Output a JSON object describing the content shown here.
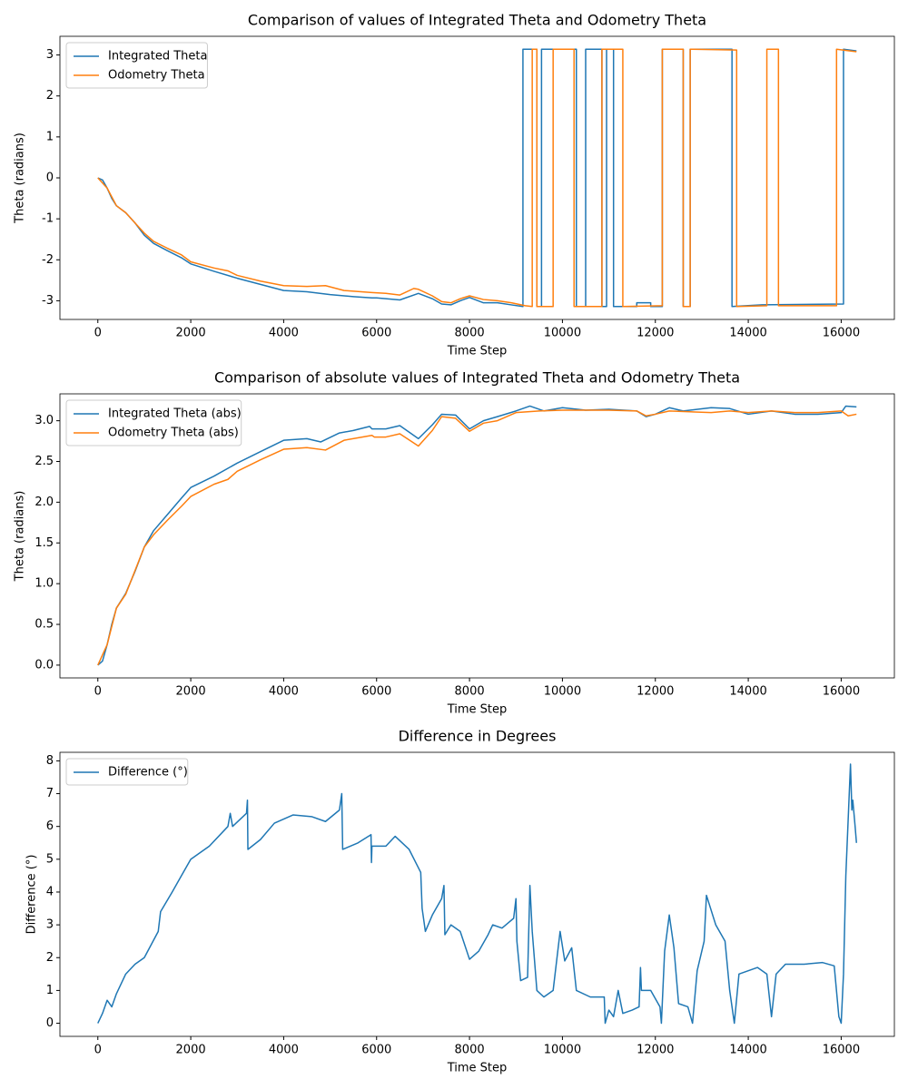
{
  "chart_data": [
    {
      "type": "line",
      "title": "Comparison of values of Integrated Theta and Odometry Theta",
      "x_label": "Time Step",
      "y_label": "Theta (radians)",
      "legend": "upper left",
      "grid": false,
      "xlim": [
        -816,
        17145
      ],
      "xticks": [
        0,
        2000,
        4000,
        6000,
        8000,
        10000,
        12000,
        14000,
        16000
      ],
      "ylim": [
        -3.456,
        3.456
      ],
      "yticks": [
        -3,
        -2,
        -1,
        0,
        1,
        2,
        3
      ],
      "series": [
        {
          "name": "Integrated Theta",
          "color": "#1f77b4",
          "x": [
            0,
            100,
            200,
            300,
            400,
            600,
            800,
            1000,
            1200,
            1500,
            1800,
            2000,
            2500,
            3000,
            3500,
            4000,
            4500,
            5000,
            5500,
            5900,
            6000,
            6500,
            6900,
            7200,
            7400,
            7600,
            7800,
            8000,
            8300,
            8600,
            8900,
            9150,
            9150,
            9450,
            9450,
            9550,
            9550,
            10300,
            10300,
            10500,
            10500,
            10850,
            10850,
            10950,
            10950,
            11100,
            11100,
            11600,
            11600,
            11900,
            11900,
            12150,
            12150,
            12600,
            12600,
            12750,
            12750,
            13650,
            13650,
            14300,
            14300,
            16050,
            16050,
            16329
          ],
          "values": [
            0,
            -0.05,
            -0.25,
            -0.5,
            -0.68,
            -0.85,
            -1.1,
            -1.4,
            -1.6,
            -1.78,
            -1.95,
            -2.1,
            -2.28,
            -2.45,
            -2.6,
            -2.75,
            -2.78,
            -2.85,
            -2.9,
            -2.93,
            -2.93,
            -2.98,
            -2.82,
            -2.95,
            -3.08,
            -3.1,
            -3.0,
            -2.92,
            -3.05,
            -3.05,
            -3.1,
            -3.14,
            3.14,
            3.14,
            -3.14,
            -3.14,
            3.14,
            3.14,
            -3.14,
            -3.14,
            3.14,
            3.14,
            -3.14,
            -3.14,
            3.14,
            3.14,
            -3.14,
            -3.14,
            -3.05,
            -3.05,
            -3.14,
            -3.14,
            3.14,
            3.14,
            -3.14,
            -3.14,
            3.14,
            3.14,
            -3.14,
            -3.1,
            -3.1,
            -3.08,
            3.14,
            3.1
          ]
        },
        {
          "name": "Odometry Theta",
          "color": "#ff7f0e",
          "x": [
            0,
            200,
            400,
            600,
            1000,
            1200,
            1500,
            1800,
            2000,
            2500,
            2800,
            3000,
            3500,
            4000,
            4500,
            4900,
            5300,
            5900,
            6200,
            6500,
            6800,
            6900,
            7200,
            7400,
            7600,
            7800,
            8000,
            8300,
            8600,
            8900,
            9200,
            9350,
            9350,
            9450,
            9450,
            9800,
            9800,
            10250,
            10250,
            10850,
            10850,
            11300,
            11300,
            12150,
            12150,
            12600,
            12600,
            12750,
            12750,
            13750,
            13750,
            14400,
            14400,
            14650,
            14650,
            15900,
            15900,
            16329
          ],
          "values": [
            0,
            -0.25,
            -0.68,
            -0.85,
            -1.35,
            -1.55,
            -1.72,
            -1.88,
            -2.05,
            -2.2,
            -2.27,
            -2.38,
            -2.52,
            -2.63,
            -2.65,
            -2.63,
            -2.75,
            -2.8,
            -2.82,
            -2.86,
            -2.7,
            -2.72,
            -2.88,
            -3.02,
            -3.05,
            -2.95,
            -2.88,
            -2.97,
            -3.0,
            -3.05,
            -3.12,
            -3.14,
            3.14,
            3.14,
            -3.14,
            -3.14,
            3.14,
            3.14,
            -3.14,
            -3.14,
            3.14,
            3.14,
            -3.14,
            -3.12,
            3.14,
            3.14,
            -3.14,
            -3.14,
            3.14,
            3.12,
            -3.14,
            -3.12,
            3.14,
            3.14,
            -3.12,
            -3.12,
            3.14,
            3.08
          ]
        }
      ]
    },
    {
      "type": "line",
      "title": "Comparison of absolute values of Integrated Theta and Odometry Theta",
      "x_label": "Time Step",
      "y_label": "Theta (radians)",
      "legend": "upper left",
      "grid": false,
      "xlim": [
        -816,
        17145
      ],
      "xticks": [
        0,
        2000,
        4000,
        6000,
        8000,
        10000,
        12000,
        14000,
        16000
      ],
      "ylim": [
        -0.157,
        3.33
      ],
      "yticks": [
        {
          "value": 0,
          "label": "0.0"
        },
        0.5,
        {
          "value": 1,
          "label": "1.0"
        },
        1.5,
        {
          "value": 2,
          "label": "2.0"
        },
        2.5,
        {
          "value": 3,
          "label": "3.0"
        }
      ],
      "series": [
        {
          "name": "Integrated Theta (abs)",
          "color": "#1f77b4",
          "x": [
            0,
            100,
            200,
            300,
            400,
            600,
            800,
            1000,
            1200,
            1500,
            1800,
            2000,
            2500,
            3000,
            3500,
            4000,
            4500,
            4800,
            5200,
            5500,
            5850,
            5900,
            6200,
            6500,
            6900,
            7200,
            7400,
            7700,
            8000,
            8300,
            8600,
            9000,
            9300,
            9600,
            10000,
            10500,
            11000,
            11600,
            11800,
            12000,
            12300,
            12600,
            13200,
            13600,
            14000,
            14500,
            15000,
            15500,
            16000,
            16100,
            16329
          ],
          "values": [
            0,
            0.05,
            0.25,
            0.5,
            0.7,
            0.88,
            1.15,
            1.45,
            1.65,
            1.85,
            2.05,
            2.18,
            2.32,
            2.48,
            2.62,
            2.76,
            2.78,
            2.74,
            2.85,
            2.88,
            2.93,
            2.9,
            2.9,
            2.94,
            2.78,
            2.95,
            3.08,
            3.07,
            2.9,
            3.0,
            3.05,
            3.12,
            3.18,
            3.12,
            3.16,
            3.13,
            3.14,
            3.12,
            3.05,
            3.08,
            3.16,
            3.12,
            3.16,
            3.15,
            3.08,
            3.12,
            3.08,
            3.08,
            3.1,
            3.18,
            3.17
          ]
        },
        {
          "name": "Odometry Theta (abs)",
          "color": "#ff7f0e",
          "x": [
            0,
            200,
            400,
            600,
            1000,
            1200,
            1500,
            1800,
            2000,
            2500,
            2800,
            3000,
            3500,
            4000,
            4500,
            4900,
            5300,
            5900,
            5950,
            6200,
            6500,
            6900,
            7200,
            7400,
            7700,
            8000,
            8300,
            8600,
            9000,
            9500,
            10000,
            11000,
            11600,
            11800,
            12000,
            12300,
            13200,
            13600,
            14000,
            14500,
            15000,
            15500,
            16000,
            16150,
            16329
          ],
          "values": [
            0,
            0.25,
            0.7,
            0.87,
            1.45,
            1.6,
            1.78,
            1.95,
            2.07,
            2.22,
            2.28,
            2.38,
            2.52,
            2.65,
            2.67,
            2.64,
            2.76,
            2.82,
            2.8,
            2.8,
            2.84,
            2.69,
            2.88,
            3.05,
            3.03,
            2.87,
            2.97,
            3.0,
            3.1,
            3.12,
            3.13,
            3.13,
            3.12,
            3.06,
            3.08,
            3.12,
            3.1,
            3.12,
            3.1,
            3.12,
            3.1,
            3.1,
            3.12,
            3.06,
            3.08
          ]
        }
      ]
    },
    {
      "type": "line",
      "title": "Difference in Degrees",
      "x_label": "Time Step",
      "y_label": "Difference (°)",
      "legend": "upper left",
      "grid": false,
      "xlim": [
        -816,
        17145
      ],
      "xticks": [
        0,
        2000,
        4000,
        6000,
        8000,
        10000,
        12000,
        14000,
        16000
      ],
      "ylim": [
        -0.4,
        8.26
      ],
      "yticks": [
        0,
        1,
        2,
        3,
        4,
        5,
        6,
        7,
        8
      ],
      "series": [
        {
          "name": "Difference (°)",
          "color": "#1f77b4",
          "x": [
            0,
            100,
            200,
            300,
            400,
            600,
            800,
            1000,
            1300,
            1350,
            1600,
            1800,
            2000,
            2400,
            2800,
            2850,
            2900,
            3200,
            3220,
            3230,
            3500,
            3800,
            4200,
            4600,
            4900,
            5200,
            5250,
            5270,
            5600,
            5880,
            5890,
            5900,
            6200,
            6400,
            6700,
            6950,
            6980,
            7050,
            7200,
            7400,
            7450,
            7470,
            7600,
            7800,
            8000,
            8200,
            8400,
            8500,
            8700,
            8950,
            9000,
            9020,
            9100,
            9250,
            9300,
            9350,
            9450,
            9600,
            9800,
            9950,
            10050,
            10200,
            10300,
            10600,
            10900,
            10920,
            11000,
            11100,
            11200,
            11300,
            11500,
            11650,
            11680,
            11700,
            11900,
            12100,
            12130,
            12200,
            12300,
            12400,
            12500,
            12700,
            12800,
            12900,
            13050,
            13100,
            13300,
            13500,
            13600,
            13700,
            13800,
            14200,
            14400,
            14500,
            14600,
            14800,
            15200,
            15600,
            15850,
            15950,
            16000,
            16050,
            16100,
            16200,
            16230,
            16250,
            16300,
            16329
          ],
          "values": [
            0,
            0.3,
            0.7,
            0.5,
            0.9,
            1.5,
            1.8,
            2.0,
            2.8,
            3.4,
            4.0,
            4.5,
            5.0,
            5.4,
            6.0,
            6.4,
            6.0,
            6.4,
            6.8,
            5.3,
            5.6,
            6.1,
            6.35,
            6.3,
            6.15,
            6.5,
            7.0,
            5.3,
            5.5,
            5.75,
            4.9,
            5.4,
            5.4,
            5.7,
            5.3,
            4.6,
            3.5,
            2.8,
            3.3,
            3.8,
            4.2,
            2.7,
            3.0,
            2.8,
            1.95,
            2.2,
            2.7,
            3.0,
            2.9,
            3.2,
            3.8,
            2.5,
            1.3,
            1.4,
            4.2,
            2.8,
            1.0,
            0.8,
            1.0,
            2.8,
            1.9,
            2.3,
            1.0,
            0.8,
            0.8,
            0.0,
            0.4,
            0.2,
            1.0,
            0.3,
            0.4,
            0.5,
            1.7,
            1.0,
            1.0,
            0.5,
            0.0,
            2.2,
            3.3,
            2.3,
            0.6,
            0.5,
            0.0,
            1.6,
            2.5,
            3.9,
            3.0,
            2.5,
            1.0,
            0.0,
            1.5,
            1.7,
            1.5,
            0.2,
            1.5,
            1.8,
            1.8,
            1.85,
            1.75,
            0.2,
            0.0,
            1.5,
            4.5,
            7.9,
            6.5,
            6.8,
            6.0,
            5.5
          ]
        }
      ]
    }
  ]
}
